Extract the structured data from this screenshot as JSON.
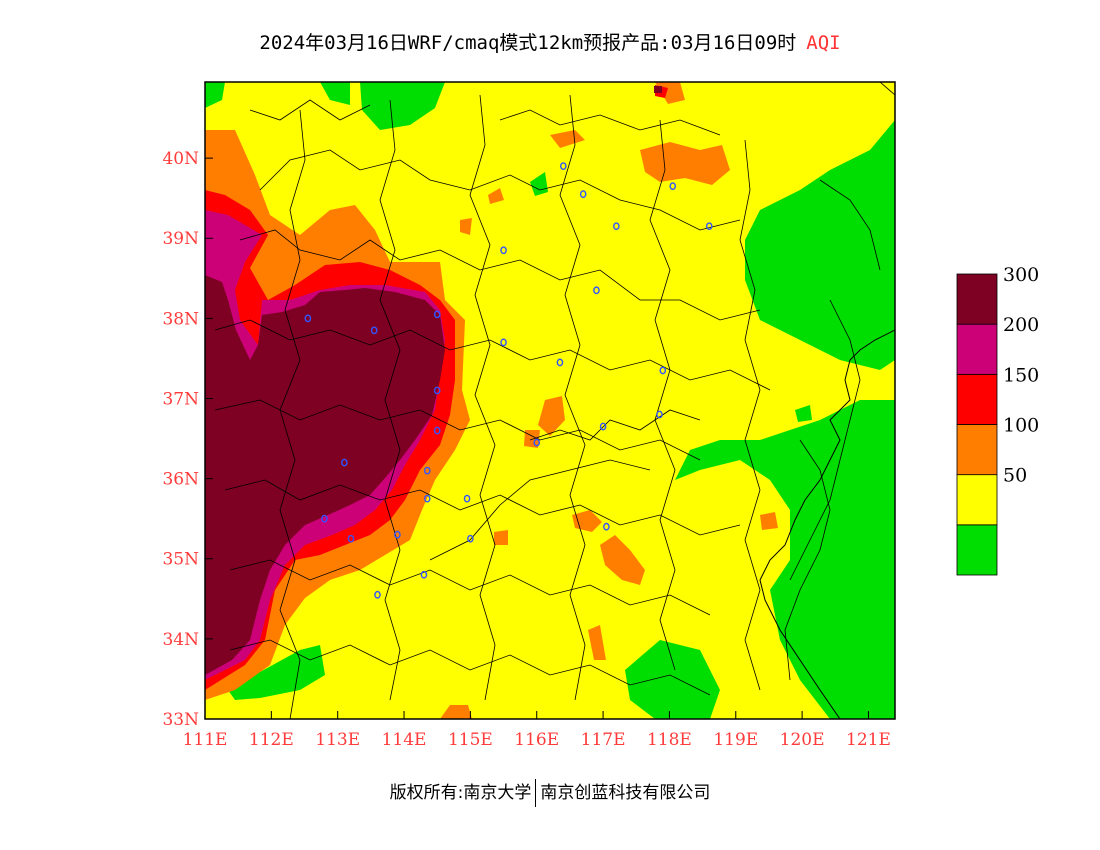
{
  "title": {
    "text": "2024年03月16日WRF/cmaq模式12km预报产品:03月16日09时",
    "variable": "AQI"
  },
  "map": {
    "lon_range": [
      111,
      121.4
    ],
    "lat_range": [
      33,
      40.95
    ],
    "lat_ticks": [
      {
        "value": 33,
        "label": "33N"
      },
      {
        "value": 34,
        "label": "34N"
      },
      {
        "value": 35,
        "label": "35N"
      },
      {
        "value": 36,
        "label": "36N"
      },
      {
        "value": 37,
        "label": "37N"
      },
      {
        "value": 38,
        "label": "38N"
      },
      {
        "value": 39,
        "label": "39N"
      },
      {
        "value": 40,
        "label": "40N"
      }
    ],
    "lon_ticks": [
      {
        "value": 111,
        "label": "111E"
      },
      {
        "value": 112,
        "label": "112E"
      },
      {
        "value": 113,
        "label": "113E"
      },
      {
        "value": 114,
        "label": "114E"
      },
      {
        "value": 115,
        "label": "115E"
      },
      {
        "value": 116,
        "label": "116E"
      },
      {
        "value": 117,
        "label": "117E"
      },
      {
        "value": 118,
        "label": "118E"
      },
      {
        "value": 119,
        "label": "119E"
      },
      {
        "value": 120,
        "label": "120E"
      },
      {
        "value": 121,
        "label": "121E"
      }
    ],
    "city_markers": [
      [
        112.55,
        38.0
      ],
      [
        113.55,
        37.85
      ],
      [
        114.5,
        38.05
      ],
      [
        115.5,
        38.85
      ],
      [
        116.4,
        39.9
      ],
      [
        116.7,
        39.55
      ],
      [
        117.2,
        39.15
      ],
      [
        116.9,
        38.35
      ],
      [
        115.5,
        37.7
      ],
      [
        116.35,
        37.45
      ],
      [
        114.5,
        37.1
      ],
      [
        114.5,
        36.6
      ],
      [
        114.35,
        36.1
      ],
      [
        114.35,
        35.75
      ],
      [
        113.1,
        36.2
      ],
      [
        112.8,
        35.5
      ],
      [
        113.2,
        35.25
      ],
      [
        113.9,
        35.3
      ],
      [
        114.95,
        35.75
      ],
      [
        115.0,
        35.25
      ],
      [
        116.0,
        36.45
      ],
      [
        117.0,
        36.65
      ],
      [
        117.05,
        35.4
      ],
      [
        117.9,
        37.35
      ],
      [
        117.85,
        36.8
      ],
      [
        118.05,
        39.65
      ],
      [
        118.6,
        39.15
      ],
      [
        114.3,
        34.8
      ],
      [
        113.6,
        34.55
      ]
    ]
  },
  "legend": {
    "title": "AQI",
    "levels": [
      {
        "label": "",
        "color": "#00dd00"
      },
      {
        "label": "50",
        "color": "#ffff00"
      },
      {
        "label": "100",
        "color": "#ff7e00"
      },
      {
        "label": "150",
        "color": "#ff0000"
      },
      {
        "label": "200",
        "color": "#cc0077"
      },
      {
        "label": "300",
        "color": "#7e0023"
      }
    ]
  },
  "footer": {
    "left": "版权所有:南京大学",
    "right": "南京创蓝科技有限公司"
  },
  "colors": {
    "good": "#00dd00",
    "moderate": "#ffff00",
    "usg": "#ff7e00",
    "unhealthy": "#ff0000",
    "very_unhealthy": "#cc0077",
    "hazardous": "#7e0023",
    "marker": "#3355ff",
    "tick_label": "#ff3b3b"
  }
}
